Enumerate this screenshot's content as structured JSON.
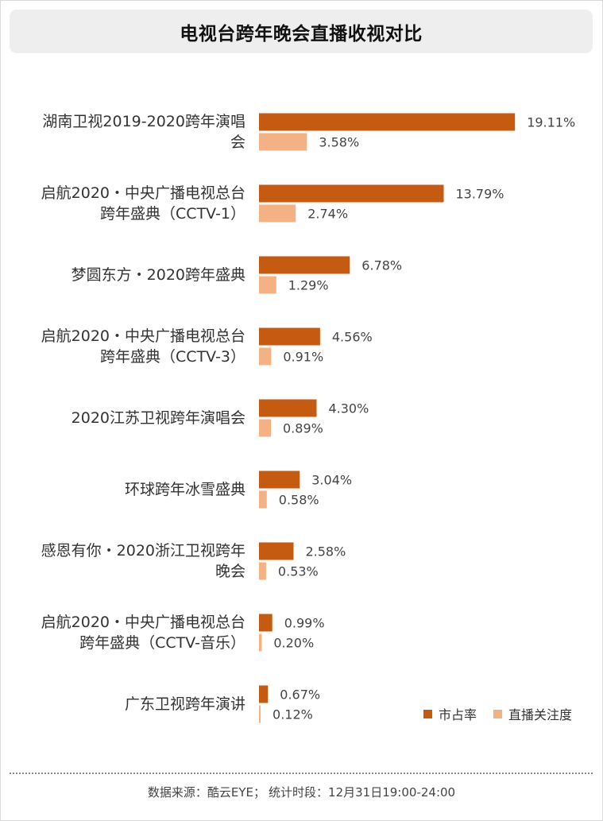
{
  "title": "电视台跨年晚会直播收视对比",
  "source": {
    "label": "数据来源：",
    "source_name": "酷云EYE；",
    "period_label": "统计时段：",
    "period": "12月31日19:00-24:00"
  },
  "colors": {
    "market_share": "#c55a11",
    "live_attention": "#f4b183"
  },
  "chart_data": {
    "type": "bar",
    "orientation": "horizontal",
    "title": "电视台跨年晚会直播收视对比",
    "categories": [
      [
        "湖南卫视2019-2020跨年演唱",
        "会"
      ],
      [
        "启航2020・中央广播电视总台",
        "跨年盛典（CCTV-1）"
      ],
      [
        "梦圆东方・2020跨年盛典"
      ],
      [
        "启航2020・中央广播电视总台",
        "跨年盛典（CCTV-3）"
      ],
      [
        "2020江苏卫视跨年演唱会"
      ],
      [
        "环球跨年冰雪盛典"
      ],
      [
        "感恩有你・2020浙江卫视跨年",
        "晚会"
      ],
      [
        "启航2020・中央广播电视总台",
        "跨年盛典（CCTV-音乐）"
      ],
      [
        "广东卫视跨年演讲"
      ]
    ],
    "series": [
      {
        "name": "市占率",
        "values": [
          19.11,
          13.79,
          6.78,
          4.56,
          4.3,
          3.04,
          2.58,
          0.99,
          0.67
        ],
        "labels": [
          "19.11%",
          "13.79%",
          "6.78%",
          "4.56%",
          "4.30%",
          "3.04%",
          "2.58%",
          "0.99%",
          "0.67%"
        ]
      },
      {
        "name": "直播关注度",
        "values": [
          3.58,
          2.74,
          1.29,
          0.91,
          0.89,
          0.58,
          0.53,
          0.2,
          0.12
        ],
        "labels": [
          "3.58%",
          "2.74%",
          "1.29%",
          "0.91%",
          "0.89%",
          "0.58%",
          "0.53%",
          "0.20%",
          "0.12%"
        ]
      }
    ],
    "legend_position": "bottom-right",
    "grid": false
  }
}
